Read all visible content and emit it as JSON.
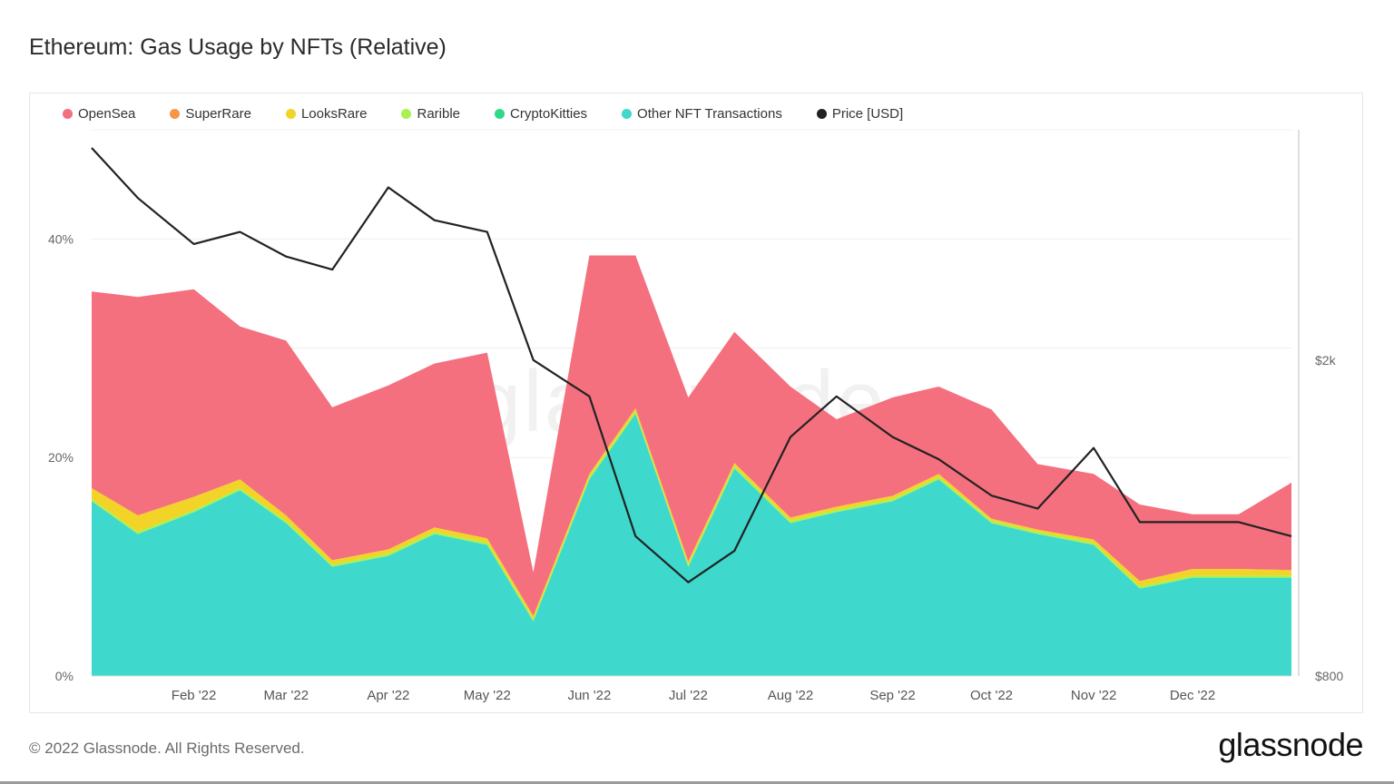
{
  "title": "Ethereum: Gas Usage by NFTs (Relative)",
  "footer": "© 2022 Glassnode. All Rights Reserved.",
  "brand": "glassnode",
  "watermark": "glassnode",
  "legend": [
    {
      "name": "OpenSea",
      "color": "#f4707e"
    },
    {
      "name": "SuperRare",
      "color": "#f79646"
    },
    {
      "name": "LooksRare",
      "color": "#f2d327"
    },
    {
      "name": "Rarible",
      "color": "#a7f24f"
    },
    {
      "name": "CryptoKitties",
      "color": "#2fd88a"
    },
    {
      "name": "Other NFT Transactions",
      "color": "#3ed8cc"
    },
    {
      "name": "Price [USD]",
      "color": "#222222"
    }
  ],
  "chart_data": {
    "type": "area",
    "x_tick_labels": [
      "Feb '22",
      "Mar '22",
      "Apr '22",
      "May '22",
      "Jun '22",
      "Jul '22",
      "Aug '22",
      "Sep '22",
      "Oct '22",
      "Nov '22",
      "Dec '22"
    ],
    "y_left_tick_labels": [
      "0%",
      "20%",
      "40%"
    ],
    "y_left_range": [
      0,
      0.5
    ],
    "y_right_tick_labels": [
      "$800",
      "$2k"
    ],
    "y_right_range": [
      800,
      3900
    ],
    "y_right_scale": "log",
    "grid": true,
    "legend_position": "top-left",
    "x": [
      "2022-01-01",
      "2022-01-15",
      "2022-02-01",
      "2022-02-15",
      "2022-03-01",
      "2022-03-15",
      "2022-04-01",
      "2022-04-15",
      "2022-05-01",
      "2022-05-15",
      "2022-06-01",
      "2022-06-15",
      "2022-07-01",
      "2022-07-15",
      "2022-08-01",
      "2022-08-15",
      "2022-09-01",
      "2022-09-15",
      "2022-10-01",
      "2022-10-15",
      "2022-11-01",
      "2022-11-15",
      "2022-12-01",
      "2022-12-15",
      "2022-12-31"
    ],
    "series": [
      {
        "name": "Other NFT Transactions",
        "values": [
          0.16,
          0.13,
          0.15,
          0.17,
          0.14,
          0.1,
          0.11,
          0.13,
          0.12,
          0.05,
          0.18,
          0.24,
          0.1,
          0.19,
          0.14,
          0.15,
          0.16,
          0.18,
          0.14,
          0.13,
          0.12,
          0.08,
          0.09,
          0.09,
          0.09
        ]
      },
      {
        "name": "Rarible",
        "values": [
          0.002,
          0.002,
          0.002,
          0.002,
          0.002,
          0.002,
          0.002,
          0.002,
          0.002,
          0.002,
          0.002,
          0.002,
          0.002,
          0.002,
          0.002,
          0.002,
          0.002,
          0.002,
          0.002,
          0.002,
          0.002,
          0.002,
          0.002,
          0.002,
          0.002
        ]
      },
      {
        "name": "LooksRare",
        "values": [
          0.01,
          0.015,
          0.012,
          0.008,
          0.005,
          0.004,
          0.004,
          0.004,
          0.004,
          0.003,
          0.003,
          0.003,
          0.003,
          0.003,
          0.003,
          0.003,
          0.003,
          0.003,
          0.002,
          0.002,
          0.003,
          0.005,
          0.006,
          0.006,
          0.005
        ]
      },
      {
        "name": "OpenSea",
        "values": [
          0.18,
          0.2,
          0.19,
          0.14,
          0.16,
          0.14,
          0.15,
          0.15,
          0.17,
          0.04,
          0.2,
          0.14,
          0.15,
          0.12,
          0.12,
          0.08,
          0.09,
          0.08,
          0.1,
          0.06,
          0.06,
          0.07,
          0.05,
          0.05,
          0.08
        ]
      },
      {
        "name": "Price [USD]",
        "axis": "right",
        "values": [
          3700,
          3200,
          2800,
          2900,
          2700,
          2600,
          3300,
          3000,
          2900,
          2000,
          1800,
          1200,
          1050,
          1150,
          1600,
          1800,
          1600,
          1500,
          1350,
          1300,
          1550,
          1250,
          1250,
          1250,
          1200
        ]
      }
    ]
  }
}
